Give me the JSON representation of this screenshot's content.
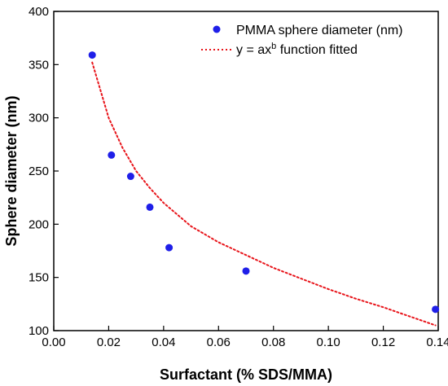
{
  "chart_data": {
    "type": "scatter",
    "xlabel": "Surfactant (% SDS/MMA)",
    "ylabel": "Sphere diameter (nm)",
    "xlim": [
      0.0,
      0.14
    ],
    "ylim": [
      100,
      400
    ],
    "xticks": [
      "0.00",
      "0.02",
      "0.04",
      "0.06",
      "0.08",
      "0.10",
      "0.12",
      "0.14"
    ],
    "yticks": [
      "100",
      "150",
      "200",
      "250",
      "300",
      "350",
      "400"
    ],
    "grid": false,
    "legend_position": "top-right",
    "series": [
      {
        "name": "PMMA sphere diameter (nm)",
        "kind": "scatter",
        "color": "#1f1fe8",
        "x": [
          0.014,
          0.021,
          0.028,
          0.035,
          0.042,
          0.07,
          0.139
        ],
        "y": [
          359,
          265,
          245,
          216,
          178,
          156,
          120
        ]
      },
      {
        "name_prefix": "y = ax",
        "name_superscript": "b",
        "name_suffix": " function fitted",
        "kind": "fit-line",
        "color": "#e8141a",
        "line_style": "dotted",
        "x": [
          0.014,
          0.02,
          0.025,
          0.03,
          0.035,
          0.04,
          0.05,
          0.06,
          0.07,
          0.08,
          0.09,
          0.1,
          0.11,
          0.12,
          0.13,
          0.139
        ],
        "y": [
          352,
          300,
          272,
          250,
          234,
          220,
          198,
          183,
          171,
          159,
          149,
          139,
          130,
          122,
          113,
          105
        ]
      }
    ]
  }
}
